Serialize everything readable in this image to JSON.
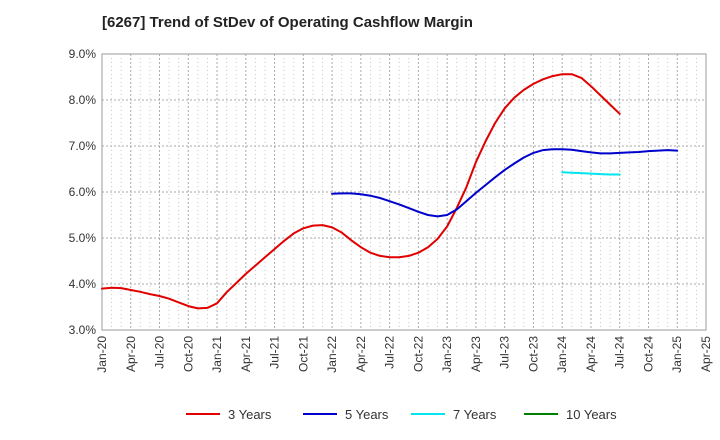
{
  "chart_data": {
    "type": "line",
    "title": "[6267]  Trend of StDev of Operating Cashflow Margin",
    "xlabel": "",
    "ylabel": "",
    "x_ticks": [
      "Jan-20",
      "Apr-20",
      "Jul-20",
      "Oct-20",
      "Jan-21",
      "Apr-21",
      "Jul-21",
      "Oct-21",
      "Jan-22",
      "Apr-22",
      "Jul-22",
      "Oct-22",
      "Jan-23",
      "Apr-23",
      "Jul-23",
      "Oct-23",
      "Jan-24",
      "Apr-24",
      "Jul-24",
      "Oct-24",
      "Jan-25",
      "Apr-25"
    ],
    "y_ticks": [
      "3.0%",
      "4.0%",
      "5.0%",
      "6.0%",
      "7.0%",
      "8.0%",
      "9.0%"
    ],
    "ylim": [
      3.0,
      9.0
    ],
    "grid": true,
    "legend_position": "bottom",
    "series": [
      {
        "name": "3 Years",
        "color": "#e00000",
        "x": [
          0,
          1,
          2,
          3,
          4,
          5,
          6,
          7,
          8,
          9,
          10,
          11,
          12,
          13,
          14,
          15,
          16,
          17,
          18,
          19,
          20,
          21,
          22,
          23,
          24,
          25,
          26,
          27,
          28,
          29,
          30,
          31,
          32,
          33,
          34,
          35,
          36,
          37,
          38,
          39,
          40,
          41,
          42,
          43,
          44,
          45,
          46,
          47,
          48,
          49,
          50,
          51,
          52,
          53,
          54
        ],
        "values": [
          3.9,
          3.92,
          3.91,
          3.87,
          3.83,
          3.78,
          3.74,
          3.68,
          3.6,
          3.52,
          3.47,
          3.48,
          3.58,
          3.82,
          4.02,
          4.22,
          4.4,
          4.58,
          4.76,
          4.94,
          5.1,
          5.21,
          5.27,
          5.28,
          5.23,
          5.12,
          4.95,
          4.8,
          4.68,
          4.61,
          4.58,
          4.58,
          4.61,
          4.68,
          4.8,
          4.98,
          5.25,
          5.65,
          6.1,
          6.65,
          7.1,
          7.5,
          7.82,
          8.05,
          8.22,
          8.35,
          8.45,
          8.52,
          8.56,
          8.56,
          8.48,
          8.3,
          8.1,
          7.9,
          7.7
        ]
      },
      {
        "name": "5 Years",
        "color": "#0000cc",
        "x": [
          24,
          25,
          26,
          27,
          28,
          29,
          30,
          31,
          32,
          33,
          34,
          35,
          36,
          37,
          38,
          39,
          40,
          41,
          42,
          43,
          44,
          45,
          46,
          47,
          48,
          49,
          50,
          51,
          52,
          53,
          54,
          55,
          56,
          57,
          58,
          59,
          60
        ],
        "values": [
          5.96,
          5.97,
          5.97,
          5.95,
          5.92,
          5.87,
          5.8,
          5.73,
          5.65,
          5.57,
          5.5,
          5.47,
          5.5,
          5.62,
          5.8,
          5.98,
          6.15,
          6.32,
          6.48,
          6.62,
          6.75,
          6.85,
          6.91,
          6.93,
          6.93,
          6.92,
          6.89,
          6.86,
          6.84,
          6.84,
          6.85,
          6.86,
          6.87,
          6.89,
          6.9,
          6.91,
          6.9
        ]
      },
      {
        "name": "7 Years",
        "color": "#00e5ee",
        "x": [
          48,
          49,
          50,
          51,
          52,
          53,
          54
        ],
        "values": [
          6.43,
          6.42,
          6.41,
          6.4,
          6.39,
          6.38,
          6.38
        ]
      },
      {
        "name": "10 Years",
        "color": "#008000",
        "x": [],
        "values": []
      }
    ]
  }
}
